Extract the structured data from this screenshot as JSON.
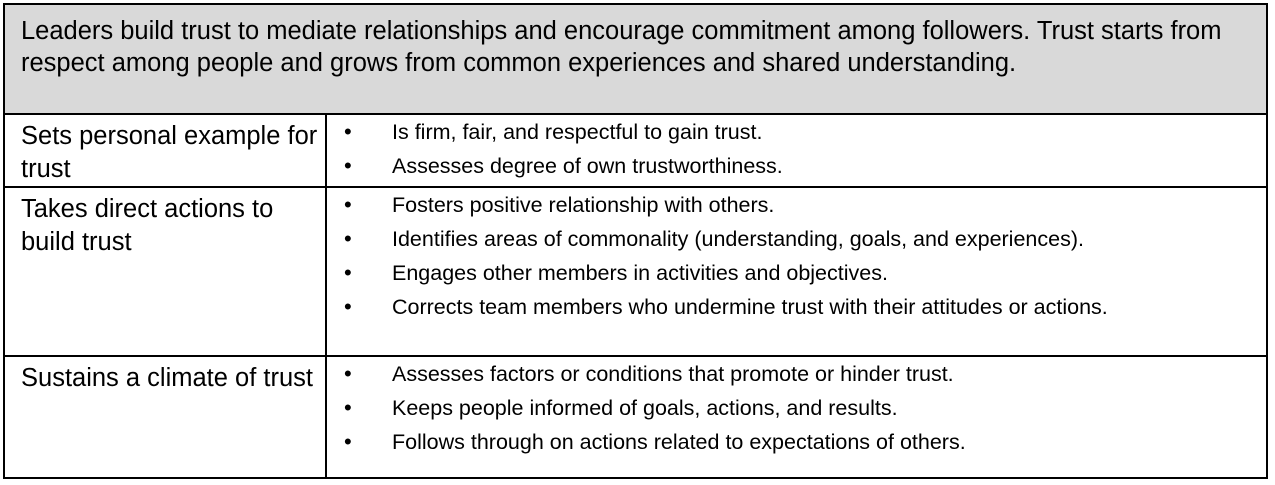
{
  "header": {
    "text": "Leaders build trust to mediate relationships and encourage commitment among followers. Trust starts from respect among people and grows from common experiences and shared understanding."
  },
  "rows": [
    {
      "label": "Sets personal example for trust",
      "items": [
        "Is firm, fair, and respectful to gain trust.",
        "Assesses degree of own trustworthiness."
      ]
    },
    {
      "label": "Takes direct actions to build trust",
      "items": [
        "Fosters positive relationship with others.",
        "Identifies areas of commonality (understanding, goals, and experiences).",
        "Engages other members in activities and objectives.",
        "Corrects team members who undermine trust with their attitudes or actions."
      ]
    },
    {
      "label": "Sustains a climate of trust",
      "items": [
        "Assesses factors or conditions that promote or hinder trust.",
        "Keeps people informed of goals, actions, and results.",
        "Follows through on actions related to expectations of others."
      ]
    }
  ],
  "bullet_glyph": "•"
}
